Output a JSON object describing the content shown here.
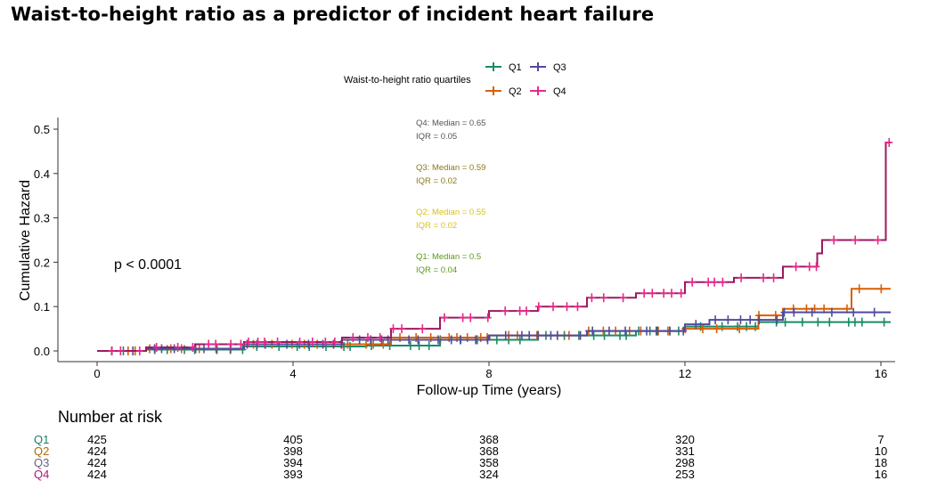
{
  "title": "Waist-to-height ratio as a predictor of incident heart failure",
  "chart_data": {
    "type": "line",
    "subtype": "step",
    "xlabel": "Follow-up Time (years)",
    "ylabel": "Cumulative Hazard",
    "xlim": [
      -2,
      16.8
    ],
    "ylim": [
      -0.025,
      0.53
    ],
    "xticks": [
      0,
      4,
      8,
      12,
      16
    ],
    "yticks": [
      0.0,
      0.1,
      0.2,
      0.3,
      0.4,
      0.5
    ],
    "ytick_labels": [
      "0.0",
      "0.1",
      "0.2",
      "0.3",
      "0.4",
      "0.5"
    ],
    "legend": {
      "title": "Waist-to-height ratio quartiles",
      "placement": "top-center"
    },
    "pvalue_text": "p < 0.0001",
    "annotations": [
      {
        "line1": "Q4: Median = 0.65",
        "line2": "IQR = 0.05",
        "color": "#555555"
      },
      {
        "line1": "Q3: Median = 0.59",
        "line2": "IQR = 0.02",
        "color": "#8a7a1a"
      },
      {
        "line1": "Q2: Median = 0.55",
        "line2": "IQR = 0.02",
        "color": "#d8c21a"
      },
      {
        "line1": "Q1: Median = 0.5",
        "line2": "IQR = 0.04",
        "color": "#5a9a1a"
      }
    ],
    "series": [
      {
        "name": "Q1",
        "color": "#1b8a66",
        "x": [
          0,
          1,
          3,
          5.5,
          7,
          9,
          11,
          12,
          13.5,
          16.2
        ],
        "y": [
          0,
          0.003,
          0.01,
          0.012,
          0.025,
          0.035,
          0.045,
          0.055,
          0.065,
          0.065
        ]
      },
      {
        "name": "Q2",
        "color": "#d95f02",
        "x": [
          0,
          1,
          3,
          6,
          8,
          10,
          12,
          13.5,
          14,
          15.4,
          16.2
        ],
        "y": [
          0,
          0.005,
          0.015,
          0.03,
          0.035,
          0.045,
          0.05,
          0.08,
          0.095,
          0.14,
          0.14
        ]
      },
      {
        "name": "Q3",
        "color": "#524b9b",
        "x": [
          0,
          1,
          3,
          5,
          8,
          10,
          12,
          12.5,
          14,
          16.2
        ],
        "y": [
          0,
          0.005,
          0.015,
          0.025,
          0.035,
          0.045,
          0.06,
          0.07,
          0.087,
          0.087
        ]
      },
      {
        "name": "Q4",
        "color": "#e7298a",
        "line_color": "#9b1a5e",
        "x": [
          0,
          1,
          2,
          3,
          5,
          6,
          7,
          8,
          9,
          10,
          11,
          12,
          13,
          14,
          14.7,
          14.8,
          16.1,
          16.2
        ],
        "y": [
          0,
          0.008,
          0.015,
          0.02,
          0.03,
          0.05,
          0.075,
          0.09,
          0.1,
          0.12,
          0.13,
          0.155,
          0.165,
          0.19,
          0.22,
          0.25,
          0.47,
          0.47
        ]
      }
    ],
    "risk_table": {
      "title": "Number at risk",
      "times": [
        0,
        4,
        8,
        12,
        16
      ],
      "rows": [
        {
          "name": "Q1",
          "color": "#1b7c6a",
          "values": [
            "425",
            "405",
            "368",
            "320",
            "7"
          ]
        },
        {
          "name": "Q2",
          "color": "#b06a00",
          "values": [
            "424",
            "398",
            "368",
            "331",
            "10"
          ]
        },
        {
          "name": "Q3",
          "color": "#6a6080",
          "values": [
            "424",
            "394",
            "358",
            "298",
            "18"
          ]
        },
        {
          "name": "Q4",
          "color": "#b0157a",
          "values": [
            "424",
            "393",
            "324",
            "253",
            "16"
          ]
        }
      ]
    }
  }
}
